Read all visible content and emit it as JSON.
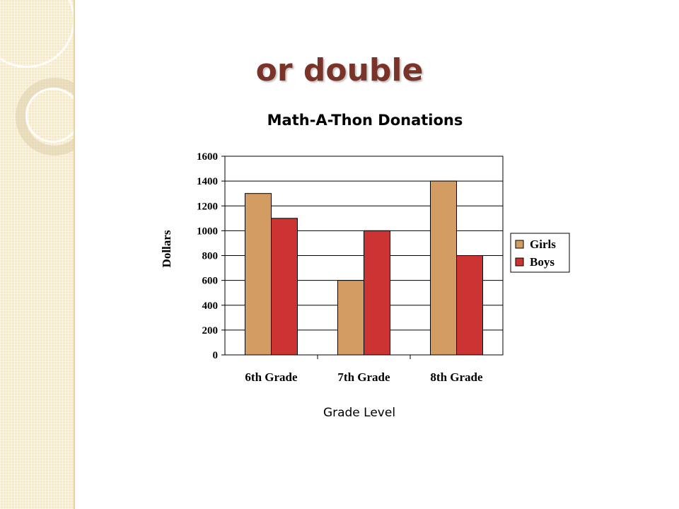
{
  "slide": {
    "title": "or double"
  },
  "colors": {
    "girls": "#d39c62",
    "boys": "#cc3333",
    "accent_title": "#7a3329"
  },
  "chart_data": {
    "type": "bar",
    "title": "Math-A-Thon Donations",
    "xlabel": "Grade Level",
    "ylabel": "Dollars",
    "categories": [
      "6th Grade",
      "7th Grade",
      "8th Grade"
    ],
    "series": [
      {
        "name": "Girls",
        "values": [
          1300,
          600,
          1400
        ]
      },
      {
        "name": "Boys",
        "values": [
          1100,
          1000,
          800
        ]
      }
    ],
    "ylim": [
      0,
      1600
    ],
    "yticks": [
      "0",
      "200",
      "400",
      "600",
      "800",
      "1000",
      "1200",
      "1400",
      "1600"
    ],
    "grid": true,
    "legend": "right"
  }
}
